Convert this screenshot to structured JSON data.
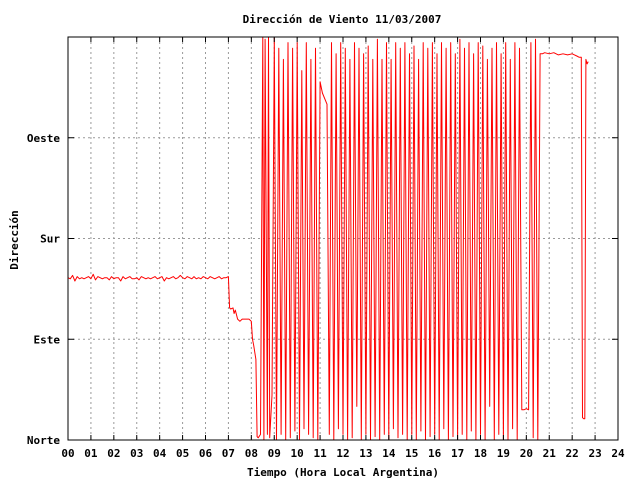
{
  "chart_data": {
    "type": "line",
    "title": "Dirección de Viento 11/03/2007",
    "xlabel": "Tiempo (Hora Local Argentina)",
    "ylabel": "Dirección",
    "xlim": [
      0,
      24
    ],
    "ylim": [
      0,
      360
    ],
    "x_ticks": [
      "00",
      "01",
      "02",
      "03",
      "04",
      "05",
      "06",
      "07",
      "08",
      "09",
      "10",
      "11",
      "12",
      "13",
      "14",
      "15",
      "16",
      "17",
      "18",
      "19",
      "20",
      "21",
      "22",
      "23",
      "24"
    ],
    "y_ticks": [
      {
        "value": 0,
        "label": "Norte"
      },
      {
        "value": 90,
        "label": "Este"
      },
      {
        "value": 180,
        "label": "Sur"
      },
      {
        "value": 270,
        "label": "Oeste"
      }
    ],
    "grid": true,
    "series": [
      {
        "color": "#ff0000",
        "points": [
          [
            0.0,
            145
          ],
          [
            0.1,
            144
          ],
          [
            0.2,
            147
          ],
          [
            0.3,
            142
          ],
          [
            0.4,
            146
          ],
          [
            0.5,
            144
          ],
          [
            0.6,
            145
          ],
          [
            0.7,
            144
          ],
          [
            0.8,
            145
          ],
          [
            0.9,
            146
          ],
          [
            1.0,
            144
          ],
          [
            1.1,
            148
          ],
          [
            1.2,
            143
          ],
          [
            1.3,
            146
          ],
          [
            1.4,
            145
          ],
          [
            1.5,
            144
          ],
          [
            1.6,
            145
          ],
          [
            1.7,
            145
          ],
          [
            1.8,
            143
          ],
          [
            1.9,
            146
          ],
          [
            2.0,
            144
          ],
          [
            2.1,
            145
          ],
          [
            2.2,
            145
          ],
          [
            2.3,
            142
          ],
          [
            2.4,
            146
          ],
          [
            2.5,
            144
          ],
          [
            2.6,
            145
          ],
          [
            2.7,
            146
          ],
          [
            2.8,
            144
          ],
          [
            2.9,
            144
          ],
          [
            3.0,
            145
          ],
          [
            3.1,
            143
          ],
          [
            3.2,
            146
          ],
          [
            3.3,
            145
          ],
          [
            3.4,
            144
          ],
          [
            3.5,
            145
          ],
          [
            3.6,
            144
          ],
          [
            3.7,
            145
          ],
          [
            3.8,
            146
          ],
          [
            3.9,
            144
          ],
          [
            4.0,
            145
          ],
          [
            4.1,
            146
          ],
          [
            4.2,
            142
          ],
          [
            4.3,
            145
          ],
          [
            4.4,
            144
          ],
          [
            4.5,
            145
          ],
          [
            4.6,
            146
          ],
          [
            4.7,
            144
          ],
          [
            4.8,
            145
          ],
          [
            4.9,
            147
          ],
          [
            5.0,
            145
          ],
          [
            5.1,
            144
          ],
          [
            5.2,
            146
          ],
          [
            5.3,
            145
          ],
          [
            5.4,
            144
          ],
          [
            5.5,
            146
          ],
          [
            5.6,
            144
          ],
          [
            5.7,
            145
          ],
          [
            5.8,
            144
          ],
          [
            5.9,
            146
          ],
          [
            6.0,
            145
          ],
          [
            6.1,
            144
          ],
          [
            6.2,
            146
          ],
          [
            6.3,
            145
          ],
          [
            6.4,
            144
          ],
          [
            6.5,
            145
          ],
          [
            6.6,
            146
          ],
          [
            6.7,
            144
          ],
          [
            6.8,
            145
          ],
          [
            6.9,
            145
          ],
          [
            7.0,
            146
          ],
          [
            7.05,
            118
          ],
          [
            7.1,
            117
          ],
          [
            7.2,
            118
          ],
          [
            7.25,
            113
          ],
          [
            7.3,
            116
          ],
          [
            7.4,
            108
          ],
          [
            7.5,
            106
          ],
          [
            7.6,
            108
          ],
          [
            7.7,
            108
          ],
          [
            7.8,
            108
          ],
          [
            7.9,
            108
          ],
          [
            8.0,
            106
          ],
          [
            8.05,
            90
          ],
          [
            8.1,
            85
          ],
          [
            8.2,
            72
          ],
          [
            8.25,
            3
          ],
          [
            8.3,
            2
          ],
          [
            8.4,
            5
          ],
          [
            8.5,
            360
          ],
          [
            8.55,
            0
          ],
          [
            8.6,
            358
          ],
          [
            8.7,
            5
          ],
          [
            8.75,
            360
          ],
          [
            8.8,
            2
          ],
          [
            8.9,
            40
          ],
          [
            9.0,
            359
          ],
          [
            9.1,
            0
          ],
          [
            9.2,
            350
          ],
          [
            9.3,
            5
          ],
          [
            9.4,
            340
          ],
          [
            9.5,
            0
          ],
          [
            9.6,
            355
          ],
          [
            9.7,
            2
          ],
          [
            9.8,
            350
          ],
          [
            9.9,
            8
          ],
          [
            10.0,
            355
          ],
          [
            10.1,
            0
          ],
          [
            10.2,
            330
          ],
          [
            10.3,
            10
          ],
          [
            10.4,
            355
          ],
          [
            10.5,
            5
          ],
          [
            10.6,
            340
          ],
          [
            10.7,
            2
          ],
          [
            10.8,
            350
          ],
          [
            10.9,
            0
          ],
          [
            11.0,
            320
          ],
          [
            11.1,
            310
          ],
          [
            11.3,
            300
          ],
          [
            11.4,
            5
          ],
          [
            11.5,
            355
          ],
          [
            11.6,
            0
          ],
          [
            11.7,
            345
          ],
          [
            11.8,
            10
          ],
          [
            11.9,
            355
          ],
          [
            12.0,
            5
          ],
          [
            12.1,
            350
          ],
          [
            12.2,
            0
          ],
          [
            12.3,
            340
          ],
          [
            12.4,
            2
          ],
          [
            12.5,
            355
          ],
          [
            12.6,
            30
          ],
          [
            12.7,
            350
          ],
          [
            12.8,
            0
          ],
          [
            12.9,
            345
          ],
          [
            13.0,
            5
          ],
          [
            13.1,
            352
          ],
          [
            13.2,
            0
          ],
          [
            13.3,
            340
          ],
          [
            13.4,
            3
          ],
          [
            13.5,
            358
          ],
          [
            13.6,
            0
          ],
          [
            13.7,
            340
          ],
          [
            13.8,
            5
          ],
          [
            13.9,
            355
          ],
          [
            14.0,
            0
          ],
          [
            14.1,
            340
          ],
          [
            14.2,
            10
          ],
          [
            14.3,
            355
          ],
          [
            14.4,
            2
          ],
          [
            14.5,
            350
          ],
          [
            14.6,
            5
          ],
          [
            14.7,
            355
          ],
          [
            14.8,
            0
          ],
          [
            14.9,
            345
          ],
          [
            15.0,
            5
          ],
          [
            15.1,
            352
          ],
          [
            15.2,
            0
          ],
          [
            15.3,
            340
          ],
          [
            15.4,
            8
          ],
          [
            15.5,
            355
          ],
          [
            15.6,
            0
          ],
          [
            15.7,
            350
          ],
          [
            15.8,
            3
          ],
          [
            15.9,
            355
          ],
          [
            16.0,
            5
          ],
          [
            16.1,
            345
          ],
          [
            16.2,
            0
          ],
          [
            16.3,
            355
          ],
          [
            16.4,
            10
          ],
          [
            16.5,
            350
          ],
          [
            16.6,
            0
          ],
          [
            16.7,
            355
          ],
          [
            16.8,
            3
          ],
          [
            16.9,
            345
          ],
          [
            17.0,
            0
          ],
          [
            17.1,
            358
          ],
          [
            17.2,
            5
          ],
          [
            17.3,
            350
          ],
          [
            17.4,
            0
          ],
          [
            17.5,
            355
          ],
          [
            17.6,
            8
          ],
          [
            17.7,
            345
          ],
          [
            17.8,
            0
          ],
          [
            17.9,
            355
          ],
          [
            18.0,
            5
          ],
          [
            18.1,
            352
          ],
          [
            18.2,
            0
          ],
          [
            18.3,
            340
          ],
          [
            18.4,
            30
          ],
          [
            18.5,
            350
          ],
          [
            18.6,
            0
          ],
          [
            18.7,
            355
          ],
          [
            18.8,
            5
          ],
          [
            18.9,
            345
          ],
          [
            19.0,
            0
          ],
          [
            19.1,
            355
          ],
          [
            19.2,
            0
          ],
          [
            19.3,
            340
          ],
          [
            19.4,
            10
          ],
          [
            19.5,
            355
          ],
          [
            19.6,
            0
          ],
          [
            19.7,
            350
          ],
          [
            19.8,
            27
          ],
          [
            19.9,
            27
          ],
          [
            20.0,
            28
          ],
          [
            20.1,
            27
          ],
          [
            20.2,
            355
          ],
          [
            20.3,
            2
          ],
          [
            20.4,
            358
          ],
          [
            20.5,
            0
          ],
          [
            20.6,
            345
          ],
          [
            20.7,
            345
          ],
          [
            20.8,
            346
          ],
          [
            21.0,
            345
          ],
          [
            21.2,
            346
          ],
          [
            21.4,
            344
          ],
          [
            21.6,
            345
          ],
          [
            21.8,
            344
          ],
          [
            22.0,
            345
          ],
          [
            22.1,
            344
          ],
          [
            22.2,
            343
          ],
          [
            22.3,
            342
          ],
          [
            22.4,
            342
          ],
          [
            22.45,
            20
          ],
          [
            22.5,
            19
          ],
          [
            22.55,
            19
          ],
          [
            22.6,
            340
          ],
          [
            22.65,
            336
          ],
          [
            22.7,
            338
          ]
        ]
      }
    ]
  }
}
